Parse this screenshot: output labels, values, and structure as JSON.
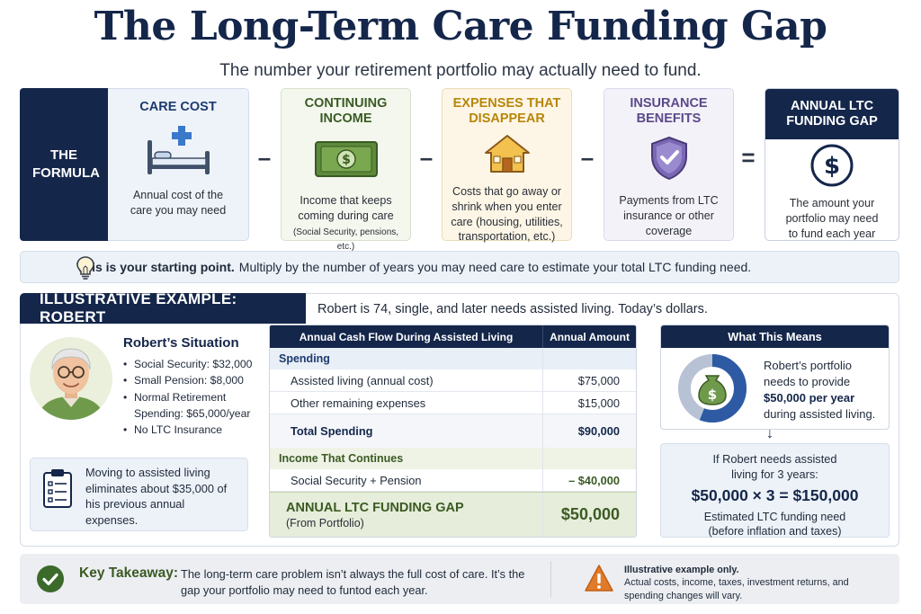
{
  "header": {
    "title": "The Long-Term Care Funding Gap",
    "subtitle": "The number your retirement portfolio may actually need to fund."
  },
  "formula": {
    "label": "THE FORMULA",
    "operators": [
      "–",
      "–",
      "–",
      "="
    ],
    "care_cost": {
      "title": "CARE COST",
      "text": "Annual cost of the care you may need",
      "icon": "hospital-bed-icon",
      "color": "#1d3b6e"
    },
    "continuing_income": {
      "title": "CONTINUING INCOME",
      "text": "Income that keeps coming during care",
      "note": "(Social Security, pensions, etc.)",
      "icon": "dollar-bill-icon",
      "color": "#3b5a23"
    },
    "expenses_disappear": {
      "title": "EXPENSES THAT DISAPPEAR",
      "text": "Costs that go away or shrink when you enter care (housing, utilities, transportation, etc.)",
      "icon": "house-icon",
      "color": "#b8860b"
    },
    "insurance": {
      "title": "INSURANCE BENEFITS",
      "text": "Payments from LTC insurance or other coverage",
      "icon": "shield-check-icon",
      "color": "#5b4a8a"
    },
    "gap": {
      "title": "ANNUAL LTC FUNDING GAP",
      "text": "The amount your portfolio may need to fund each year",
      "icon": "dollar-circle-icon",
      "color": "#14264a"
    }
  },
  "starting_point": {
    "bold": "This is your starting point.",
    "text": "Multiply by the number of years you may need care to estimate your total LTC funding need.",
    "icon": "lightbulb-icon"
  },
  "example": {
    "tab": "ILLUSTRATIVE EXAMPLE: ROBERT",
    "description": "Robert is 74, single, and later needs assisted living. Today’s dollars.",
    "situation_title": "Robert’s Situation",
    "situation": [
      "Social Security: $32,000",
      "Small Pension: $8,000",
      "Normal Retirement Spending: $65,000/year",
      "No LTC Insurance"
    ],
    "note": "Moving to assisted living eliminates about $35,000 of his previous annual expenses.",
    "table": {
      "headers": [
        "Annual Cash Flow During Assisted Living",
        "Annual Amount"
      ],
      "spending_label": "Spending",
      "rows": [
        {
          "label": "Assisted living (annual cost)",
          "value": "$75,000"
        },
        {
          "label": "Other remaining expenses",
          "value": "$15,000"
        }
      ],
      "total": {
        "label": "Total Spending",
        "value": "$90,000"
      },
      "income_label": "Income That Continues",
      "income_row": {
        "label": "Social Security + Pension",
        "value": "– $40,000"
      },
      "gap": {
        "label": "ANNUAL LTC FUNDING GAP",
        "sub": "(From Portfolio)",
        "value": "$50,000"
      }
    },
    "what_means": {
      "title": "What This Means",
      "text_a": "Robert’s portfolio needs to provide",
      "text_bold": "$50,000 per year",
      "text_b": "during assisted living.",
      "donut_fraction": 0.56
    },
    "calc": {
      "line1": "If Robert needs assisted living for 3 years:",
      "equation": "$50,000 × 3 = $150,000",
      "line2": "Estimated LTC funding need (before inflation and taxes)"
    }
  },
  "takeaway": {
    "label": "Key Takeaway:",
    "text": "The long-term care problem isn’t always the full cost of care. It’s the gap your portfolio may need to funtod each year.",
    "warning_bold": "Illustrative example only.",
    "warning_text": "Actual costs, income, taxes, investment returns, and spending changes will vary."
  }
}
